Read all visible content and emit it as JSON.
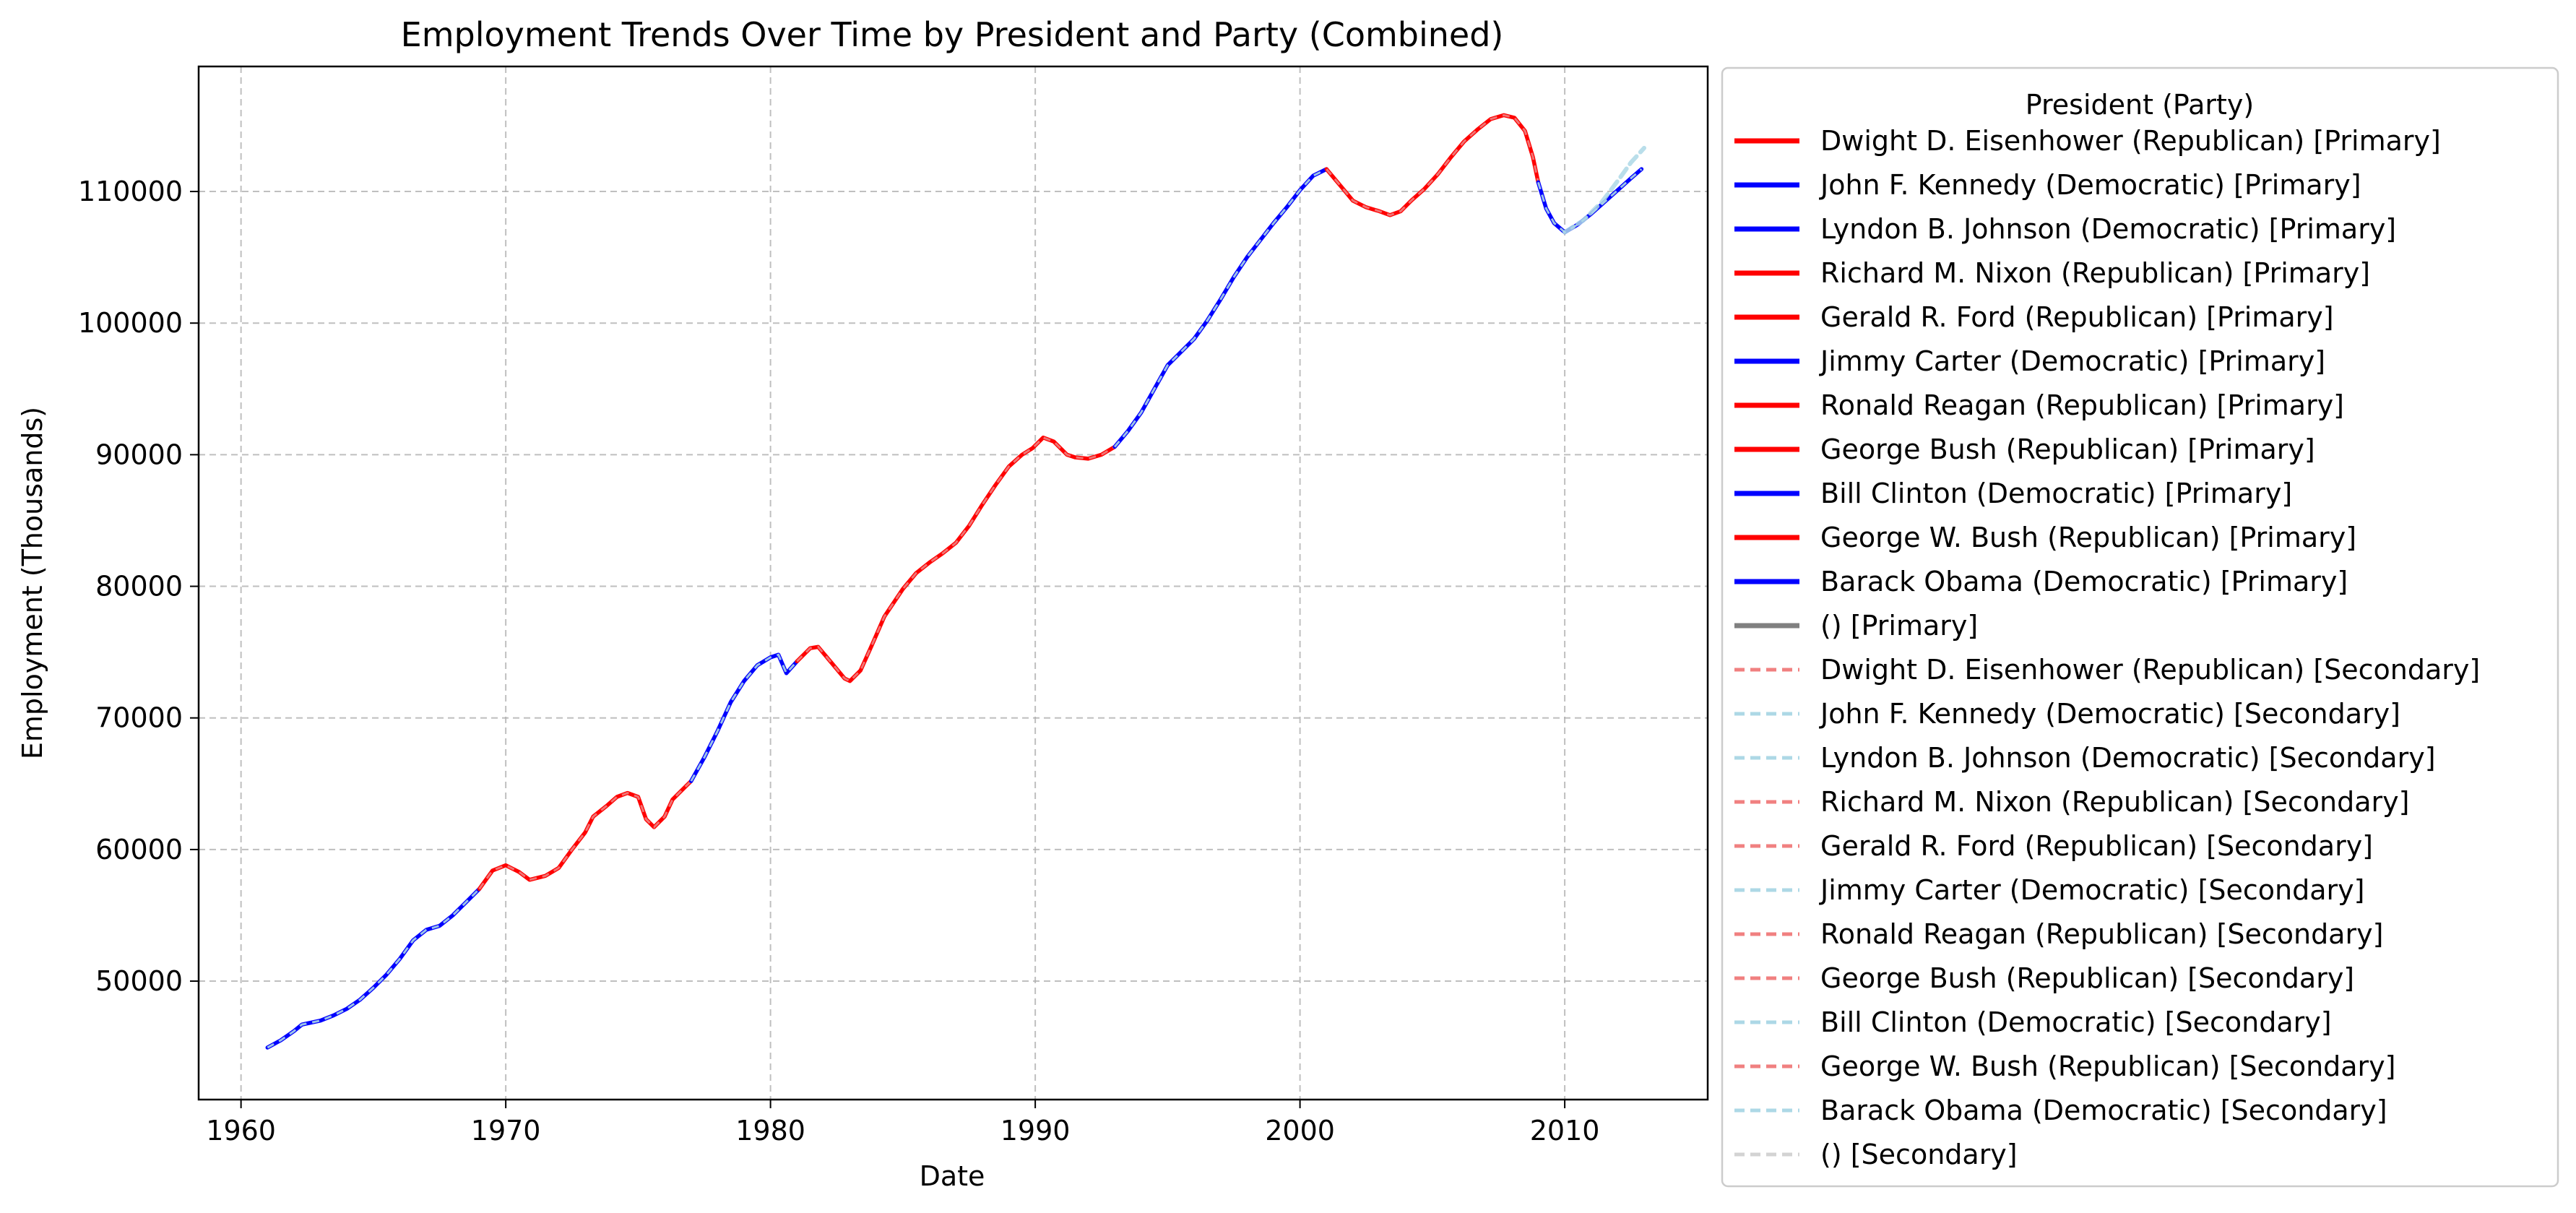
{
  "chart_data": {
    "type": "line",
    "title": "Employment Trends Over Time by President and Party (Combined)",
    "xlabel": "Date",
    "ylabel": "Employment (Thousands)",
    "xlim": [
      1958.4,
      2015.4
    ],
    "ylim": [
      41000,
      119500
    ],
    "x_ticks": [
      1960,
      1970,
      1980,
      1990,
      2000,
      2010
    ],
    "y_ticks": [
      50000,
      60000,
      70000,
      80000,
      90000,
      100000,
      110000
    ],
    "grid": true,
    "legend": {
      "title": "President (Party)",
      "placement": "outside-right",
      "entries": [
        {
          "label": "Dwight D. Eisenhower (Republican) [Primary]",
          "color": "#ff0000",
          "style": "solid"
        },
        {
          "label": "John F. Kennedy (Democratic) [Primary]",
          "color": "#0000ff",
          "style": "solid"
        },
        {
          "label": "Lyndon B. Johnson (Democratic) [Primary]",
          "color": "#0000ff",
          "style": "solid"
        },
        {
          "label": "Richard M. Nixon (Republican) [Primary]",
          "color": "#ff0000",
          "style": "solid"
        },
        {
          "label": "Gerald R. Ford (Republican) [Primary]",
          "color": "#ff0000",
          "style": "solid"
        },
        {
          "label": "Jimmy Carter (Democratic) [Primary]",
          "color": "#0000ff",
          "style": "solid"
        },
        {
          "label": "Ronald Reagan (Republican) [Primary]",
          "color": "#ff0000",
          "style": "solid"
        },
        {
          "label": "George Bush (Republican) [Primary]",
          "color": "#ff0000",
          "style": "solid"
        },
        {
          "label": "Bill Clinton (Democratic) [Primary]",
          "color": "#0000ff",
          "style": "solid"
        },
        {
          "label": "George W. Bush (Republican) [Primary]",
          "color": "#ff0000",
          "style": "solid"
        },
        {
          "label": "Barack Obama (Democratic) [Primary]",
          "color": "#0000ff",
          "style": "solid"
        },
        {
          "label": " () [Primary]",
          "color": "#808080",
          "style": "solid"
        },
        {
          "label": "Dwight D. Eisenhower (Republican) [Secondary]",
          "color": "#f08080",
          "style": "dashed"
        },
        {
          "label": "John F. Kennedy (Democratic) [Secondary]",
          "color": "#add8e6",
          "style": "dashed"
        },
        {
          "label": "Lyndon B. Johnson (Democratic) [Secondary]",
          "color": "#add8e6",
          "style": "dashed"
        },
        {
          "label": "Richard M. Nixon (Republican) [Secondary]",
          "color": "#f08080",
          "style": "dashed"
        },
        {
          "label": "Gerald R. Ford (Republican) [Secondary]",
          "color": "#f08080",
          "style": "dashed"
        },
        {
          "label": "Jimmy Carter (Democratic) [Secondary]",
          "color": "#add8e6",
          "style": "dashed"
        },
        {
          "label": "Ronald Reagan (Republican) [Secondary]",
          "color": "#f08080",
          "style": "dashed"
        },
        {
          "label": "George Bush (Republican) [Secondary]",
          "color": "#f08080",
          "style": "dashed"
        },
        {
          "label": "Bill Clinton (Democratic) [Secondary]",
          "color": "#add8e6",
          "style": "dashed"
        },
        {
          "label": "George W. Bush (Republican) [Secondary]",
          "color": "#f08080",
          "style": "dashed"
        },
        {
          "label": "Barack Obama (Democratic) [Secondary]",
          "color": "#add8e6",
          "style": "dashed"
        },
        {
          "label": " () [Secondary]",
          "color": "#d3d3d3",
          "style": "dashed"
        }
      ]
    },
    "series": [
      {
        "party": "Democratic",
        "color": "#0000ff",
        "points": [
          [
            1961.0,
            44950
          ],
          [
            1961.5,
            45500
          ],
          [
            1962.0,
            46200
          ],
          [
            1962.3,
            46700
          ],
          [
            1963.0,
            47000
          ],
          [
            1963.5,
            47400
          ],
          [
            1964.0,
            47900
          ],
          [
            1964.5,
            48600
          ],
          [
            1965.0,
            49500
          ],
          [
            1965.5,
            50500
          ],
          [
            1966.0,
            51700
          ],
          [
            1966.5,
            53100
          ],
          [
            1967.0,
            53900
          ],
          [
            1967.5,
            54200
          ],
          [
            1968.0,
            55000
          ],
          [
            1968.5,
            56000
          ],
          [
            1969.0,
            57000
          ]
        ]
      },
      {
        "party": "Republican",
        "color": "#ff0000",
        "points": [
          [
            1969.0,
            57000
          ],
          [
            1969.5,
            58400
          ],
          [
            1970.0,
            58800
          ],
          [
            1970.5,
            58300
          ],
          [
            1970.9,
            57700
          ],
          [
            1971.5,
            58000
          ],
          [
            1972.0,
            58600
          ],
          [
            1972.5,
            60000
          ],
          [
            1973.0,
            61300
          ],
          [
            1973.3,
            62500
          ],
          [
            1973.8,
            63300
          ],
          [
            1974.2,
            64000
          ],
          [
            1974.6,
            64300
          ],
          [
            1975.0,
            64000
          ],
          [
            1975.3,
            62300
          ],
          [
            1975.6,
            61700
          ],
          [
            1976.0,
            62500
          ],
          [
            1976.3,
            63800
          ],
          [
            1976.8,
            64800
          ],
          [
            1977.0,
            65200
          ]
        ]
      },
      {
        "party": "Democratic",
        "color": "#0000ff",
        "points": [
          [
            1977.0,
            65200
          ],
          [
            1977.5,
            67000
          ],
          [
            1978.0,
            69000
          ],
          [
            1978.5,
            71200
          ],
          [
            1979.0,
            72800
          ],
          [
            1979.5,
            74000
          ],
          [
            1980.0,
            74600
          ],
          [
            1980.3,
            74800
          ],
          [
            1980.6,
            73400
          ],
          [
            1981.0,
            74300
          ]
        ]
      },
      {
        "party": "Republican",
        "color": "#ff0000",
        "points": [
          [
            1981.0,
            74300
          ],
          [
            1981.5,
            75300
          ],
          [
            1981.8,
            75400
          ],
          [
            1982.3,
            74200
          ],
          [
            1982.8,
            73000
          ],
          [
            1983.0,
            72800
          ],
          [
            1983.4,
            73600
          ],
          [
            1983.8,
            75400
          ],
          [
            1984.3,
            77700
          ],
          [
            1985.0,
            79800
          ],
          [
            1985.5,
            81000
          ],
          [
            1986.0,
            81800
          ],
          [
            1986.5,
            82500
          ],
          [
            1987.0,
            83300
          ],
          [
            1987.5,
            84600
          ],
          [
            1988.0,
            86200
          ],
          [
            1988.5,
            87700
          ],
          [
            1989.0,
            89100
          ],
          [
            1989.5,
            90000
          ],
          [
            1989.9,
            90500
          ],
          [
            1990.3,
            91300
          ],
          [
            1990.7,
            91000
          ],
          [
            1991.2,
            90000
          ],
          [
            1991.5,
            89800
          ],
          [
            1992.0,
            89700
          ],
          [
            1992.5,
            90000
          ],
          [
            1993.0,
            90600
          ]
        ]
      },
      {
        "party": "Democratic",
        "color": "#0000ff",
        "points": [
          [
            1993.0,
            90600
          ],
          [
            1993.5,
            91800
          ],
          [
            1994.0,
            93200
          ],
          [
            1994.5,
            95000
          ],
          [
            1995.0,
            96800
          ],
          [
            1995.5,
            97800
          ],
          [
            1996.0,
            98800
          ],
          [
            1996.5,
            100200
          ],
          [
            1997.0,
            101800
          ],
          [
            1997.5,
            103500
          ],
          [
            1998.0,
            105000
          ],
          [
            1998.5,
            106300
          ],
          [
            1999.0,
            107600
          ],
          [
            1999.5,
            108800
          ],
          [
            2000.0,
            110100
          ],
          [
            2000.5,
            111200
          ],
          [
            2001.0,
            111700
          ]
        ]
      },
      {
        "party": "Republican",
        "color": "#ff0000",
        "points": [
          [
            2001.0,
            111700
          ],
          [
            2001.5,
            110500
          ],
          [
            2002.0,
            109300
          ],
          [
            2002.5,
            108800
          ],
          [
            2003.0,
            108500
          ],
          [
            2003.4,
            108200
          ],
          [
            2003.8,
            108500
          ],
          [
            2004.2,
            109300
          ],
          [
            2004.7,
            110200
          ],
          [
            2005.2,
            111300
          ],
          [
            2005.7,
            112600
          ],
          [
            2006.2,
            113800
          ],
          [
            2006.7,
            114700
          ],
          [
            2007.2,
            115500
          ],
          [
            2007.7,
            115800
          ],
          [
            2008.1,
            115600
          ],
          [
            2008.5,
            114600
          ],
          [
            2008.8,
            112600
          ],
          [
            2009.0,
            110700
          ]
        ]
      },
      {
        "party": "Democratic",
        "color": "#0000ff",
        "points": [
          [
            2009.0,
            110700
          ],
          [
            2009.3,
            108700
          ],
          [
            2009.6,
            107600
          ],
          [
            2010.0,
            106900
          ],
          [
            2010.5,
            107500
          ],
          [
            2011.0,
            108300
          ],
          [
            2011.5,
            109200
          ],
          [
            2012.0,
            110100
          ],
          [
            2012.5,
            111000
          ],
          [
            2012.9,
            111700
          ]
        ]
      },
      {
        "party": "Democratic (Secondary)",
        "color": "#add8e6",
        "style": "dashed",
        "points": [
          [
            2010.0,
            106900
          ],
          [
            2010.7,
            107800
          ],
          [
            2011.4,
            109200
          ],
          [
            2012.0,
            110800
          ],
          [
            2012.5,
            112200
          ],
          [
            2013.0,
            113300
          ]
        ]
      }
    ]
  }
}
